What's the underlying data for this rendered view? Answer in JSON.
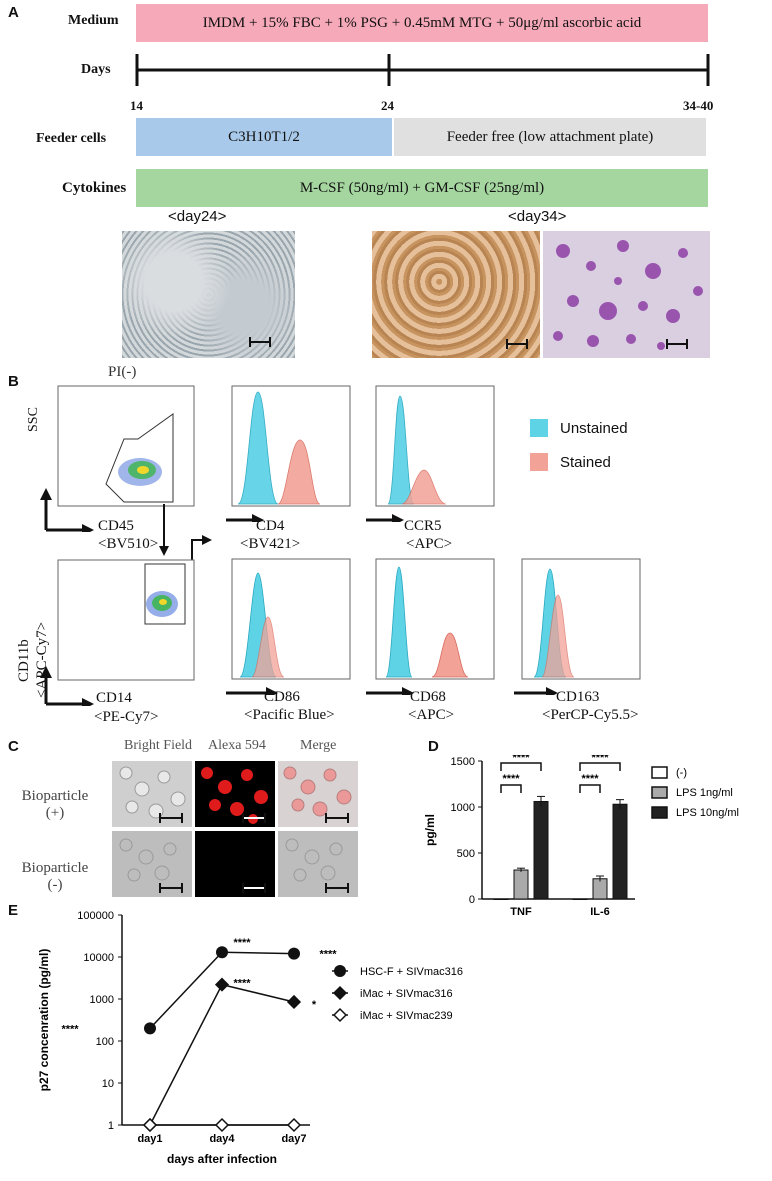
{
  "panelA": {
    "letter": "A",
    "medium_label": "Medium",
    "medium_text": "IMDM + 15% FBC + 1% PSG + 0.45mM MTG + 50μg/ml ascorbic acid",
    "days_label": "Days",
    "day_ticks": [
      "14",
      "24",
      "34-40"
    ],
    "feeder_label": "Feeder cells",
    "feeder_1": "C3H10T1/2",
    "feeder_2": "Feeder free (low attachment plate)",
    "cytokines_label": "Cytokines",
    "cytokines_text": "M-CSF (50ng/ml) + GM-CSF (25ng/ml)",
    "photo_label_1": "<day24>",
    "photo_label_2": "<day34>",
    "colors": {
      "medium": "#f6a9b8",
      "feeder1": "#a9c9ea",
      "feeder2": "#e0e0e0",
      "cytokines": "#a5d6a0"
    }
  },
  "panelB": {
    "letter": "B",
    "gate_title": "PI(-)",
    "ssc": "SSC",
    "cd45": "CD45",
    "bv510": "<BV510>",
    "cd11b": "CD11b",
    "apc_cy7": "<APC-Cy7>",
    "cd14": "CD14",
    "pe_cy7": "<PE-Cy7>",
    "markers": [
      {
        "name": "CD4",
        "fluor": "<BV421>"
      },
      {
        "name": "CCR5",
        "fluor": "<APC>"
      },
      {
        "name": "CD86",
        "fluor": "<Pacific Blue>"
      },
      {
        "name": "CD68",
        "fluor": "<APC>"
      },
      {
        "name": "CD163",
        "fluor": "<PerCP-Cy5.5>"
      }
    ],
    "legend": [
      {
        "label": "Unstained",
        "color": "#5fd3e6"
      },
      {
        "label": "Stained",
        "color": "#f2a297"
      }
    ]
  },
  "panelC": {
    "letter": "C",
    "columns": [
      "Bright Field",
      "Alexa 594",
      "Merge"
    ],
    "rows": [
      "Bioparticle\n(+)",
      "Bioparticle\n(-)"
    ],
    "row1_line1": "Bioparticle",
    "row1_line2": "(+)",
    "row2_line1": "Bioparticle",
    "row2_line2": "(-)"
  },
  "panelD": {
    "letter": "D",
    "chart_data": {
      "type": "bar",
      "categories": [
        "TNF",
        "IL-6"
      ],
      "series": [
        {
          "name": "(-)",
          "values": [
            0,
            0
          ],
          "color": "#ffffff"
        },
        {
          "name": "LPS 1ng/ml",
          "values": [
            315,
            220
          ],
          "errors": [
            20,
            30
          ],
          "color": "#aaaaaa"
        },
        {
          "name": "LPS 10ng/ml",
          "values": [
            1060,
            1030
          ],
          "errors": [
            55,
            50
          ],
          "color": "#222222"
        }
      ],
      "ylabel": "pg/ml",
      "ylim": [
        0,
        1500
      ],
      "yticks": [
        0,
        500,
        1000,
        1500
      ],
      "significance": "****"
    }
  },
  "panelE": {
    "letter": "E",
    "chart_data": {
      "type": "line",
      "x": [
        "day1",
        "day4",
        "day7"
      ],
      "series": [
        {
          "name": "HSC-F + SIVmac316",
          "values": [
            200,
            13000,
            12000
          ],
          "marker": "circle"
        },
        {
          "name": "iMac + SIVmac316",
          "values": [
            1,
            2200,
            850
          ],
          "marker": "diamond"
        },
        {
          "name": "iMac + SIVmac239",
          "values": [
            1,
            1,
            1
          ],
          "marker": "open-diamond"
        }
      ],
      "ylabel": "p27 concenration (pg/ml)",
      "xlabel": "days after infection",
      "yscale": "log",
      "ylim": [
        1,
        100000
      ],
      "ytick_labels": [
        "1",
        "10",
        "100",
        "1000",
        "10000",
        "100000"
      ],
      "annotations": [
        "****",
        "****",
        "****",
        "****",
        "*"
      ]
    }
  }
}
